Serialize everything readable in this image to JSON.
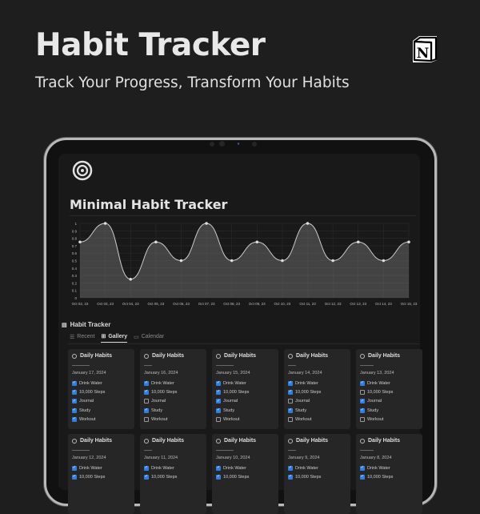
{
  "hero": {
    "title": "Habit Tracker",
    "subtitle": "Track Your Progress, Transform Your Habits",
    "logo": "notion-logo"
  },
  "page": {
    "icon": "target-icon",
    "title": "Minimal Habit Tracker"
  },
  "chart_data": {
    "type": "area",
    "categories": [
      "Oct 02, 23",
      "Oct 03, 23",
      "Oct 04, 23",
      "Oct 05, 23",
      "Oct 06, 23",
      "Oct 07, 23",
      "Oct 08, 23",
      "Oct 09, 23",
      "Oct 10, 23",
      "Oct 11, 23",
      "Oct 12, 23",
      "Oct 13, 23",
      "Oct 14, 23",
      "Oct 15, 23"
    ],
    "values": [
      0.75,
      1,
      0.25,
      0.75,
      0.5,
      1,
      0.5,
      0.75,
      0.5,
      1,
      0.5,
      0.75,
      0.5,
      0.75
    ],
    "yticks": [
      "0",
      "0.1",
      "0.2",
      "0.3",
      "0.4",
      "0.5",
      "0.6",
      "0.7",
      "0.8",
      "0.9",
      "1"
    ],
    "ylim": [
      0,
      1
    ],
    "grid": true,
    "smooth": true,
    "color": "#cccccc"
  },
  "database": {
    "title": "Habit Tracker",
    "tabs": [
      {
        "label": "Recent",
        "icon": "list-icon"
      },
      {
        "label": "Gallery",
        "icon": "gallery-icon",
        "active": true
      },
      {
        "label": "Calendar",
        "icon": "calendar-icon"
      }
    ],
    "cards": [
      {
        "title": "Daily Habits",
        "date": "January 17, 2024",
        "items": [
          {
            "label": "Drink Water",
            "checked": true
          },
          {
            "label": "10,000 Steps",
            "checked": true
          },
          {
            "label": "Journal",
            "checked": true
          },
          {
            "label": "Study",
            "checked": true
          },
          {
            "label": "Workout",
            "checked": true
          }
        ]
      },
      {
        "title": "Daily Habits",
        "date": "January 16, 2024",
        "items": [
          {
            "label": "Drink Water",
            "checked": true
          },
          {
            "label": "10,000 Steps",
            "checked": true
          },
          {
            "label": "Journal",
            "checked": false
          },
          {
            "label": "Study",
            "checked": true
          },
          {
            "label": "Workout",
            "checked": false
          }
        ]
      },
      {
        "title": "Daily Habits",
        "date": "January 15, 2024",
        "items": [
          {
            "label": "Drink Water",
            "checked": true
          },
          {
            "label": "10,000 Steps",
            "checked": true
          },
          {
            "label": "Journal",
            "checked": true
          },
          {
            "label": "Study",
            "checked": true
          },
          {
            "label": "Workout",
            "checked": false
          }
        ]
      },
      {
        "title": "Daily Habits",
        "date": "January 14, 2024",
        "items": [
          {
            "label": "Drink Water",
            "checked": true
          },
          {
            "label": "10,000 Steps",
            "checked": true
          },
          {
            "label": "Journal",
            "checked": false
          },
          {
            "label": "Study",
            "checked": true
          },
          {
            "label": "Workout",
            "checked": false
          }
        ]
      },
      {
        "title": "Daily Habits",
        "date": "January 13, 2024",
        "items": [
          {
            "label": "Drink Water",
            "checked": true
          },
          {
            "label": "10,000 Steps",
            "checked": false
          },
          {
            "label": "Journal",
            "checked": true
          },
          {
            "label": "Study",
            "checked": true
          },
          {
            "label": "Workout",
            "checked": false
          }
        ]
      },
      {
        "title": "Daily Habits",
        "date": "January 12, 2024",
        "items": [
          {
            "label": "Drink Water",
            "checked": true
          },
          {
            "label": "10,000 Steps",
            "checked": true
          }
        ]
      },
      {
        "title": "Daily Habits",
        "date": "January 11, 2024",
        "items": [
          {
            "label": "Drink Water",
            "checked": true
          },
          {
            "label": "10,000 Steps",
            "checked": true
          }
        ]
      },
      {
        "title": "Daily Habits",
        "date": "January 10, 2024",
        "items": [
          {
            "label": "Drink Water",
            "checked": true
          },
          {
            "label": "10,000 Steps",
            "checked": true
          }
        ]
      },
      {
        "title": "Daily Habits",
        "date": "January 9, 2024",
        "items": [
          {
            "label": "Drink Water",
            "checked": true
          },
          {
            "label": "10,000 Steps",
            "checked": true
          }
        ]
      },
      {
        "title": "Daily Habits",
        "date": "January 8, 2024",
        "items": [
          {
            "label": "Drink Water",
            "checked": true
          },
          {
            "label": "10,000 Steps",
            "checked": true
          }
        ]
      }
    ]
  }
}
